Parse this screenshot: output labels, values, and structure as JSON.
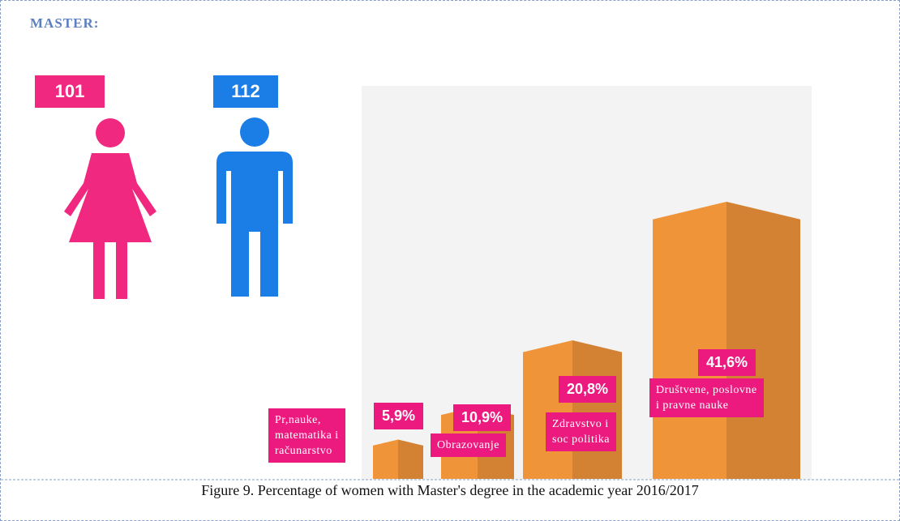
{
  "header": "MASTER:",
  "people": [
    {
      "count": 101,
      "color": "#f0287f"
    },
    {
      "count": 112,
      "color": "#1a7ee6"
    }
  ],
  "chart_data": {
    "type": "bar",
    "categories": [
      "Pr,nauke,\nmatematika i\nračunarstvo",
      "Obrazovanje",
      "Zdravstvo i\nsoc politika",
      "Društvene, poslovne\ni pravne nauke"
    ],
    "values": [
      5.9,
      10.9,
      20.8,
      41.6
    ],
    "value_labels": [
      "5,9%",
      "10,9%",
      "20,8%",
      "41,6%"
    ],
    "color": "#f0943a",
    "label_color": "#ec1a7f",
    "ylim": [
      0,
      45
    ]
  },
  "caption": "Figure 9. Percentage of women with Master's degree in the academic year 2016/2017"
}
